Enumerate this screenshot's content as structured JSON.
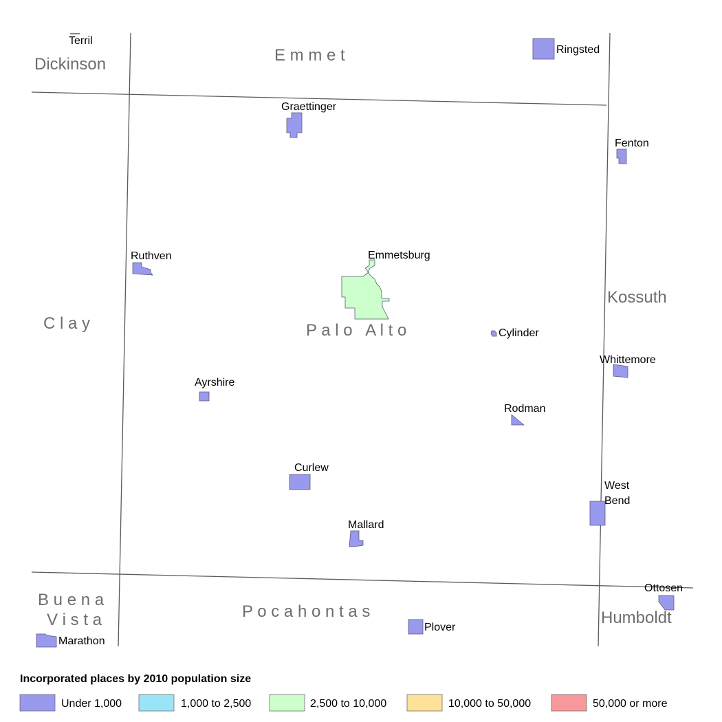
{
  "counties": {
    "dickinson": "Dickinson",
    "emmet": "E m m e t",
    "kossuth": "Kossuth",
    "clay": "C l a y",
    "palo_alto": "P a l o   A l t o",
    "buena_vista_1": "B u e n a",
    "buena_vista_2": "V i s t a",
    "pocahontas": "P o c a h o n t a s",
    "humboldt": "Humboldt"
  },
  "places": {
    "terril": "Terril",
    "ringsted": "Ringsted",
    "graettinger": "Graettinger",
    "fenton": "Fenton",
    "ruthven": "Ruthven",
    "emmetsburg": "Emmetsburg",
    "cylinder": "Cylinder",
    "whittemore": "Whittemore",
    "ayrshire": "Ayrshire",
    "rodman": "Rodman",
    "curlew": "Curlew",
    "west_bend_1": "West",
    "west_bend_2": "Bend",
    "mallard": "Mallard",
    "ottosen": "Ottosen",
    "plover": "Plover",
    "marathon": "Marathon"
  },
  "legend": {
    "title": "Incorporated places by 2010 population size",
    "items": [
      {
        "label": "Under 1,000",
        "color": "#9999ee"
      },
      {
        "label": "1,000 to 2,500",
        "color": "#99e5f7"
      },
      {
        "label": "2,500 to 10,000",
        "color": "#ccffcc"
      },
      {
        "label": "10,000 to 50,000",
        "color": "#ffe299"
      },
      {
        "label": "50,000 or more",
        "color": "#f7999a"
      }
    ]
  }
}
